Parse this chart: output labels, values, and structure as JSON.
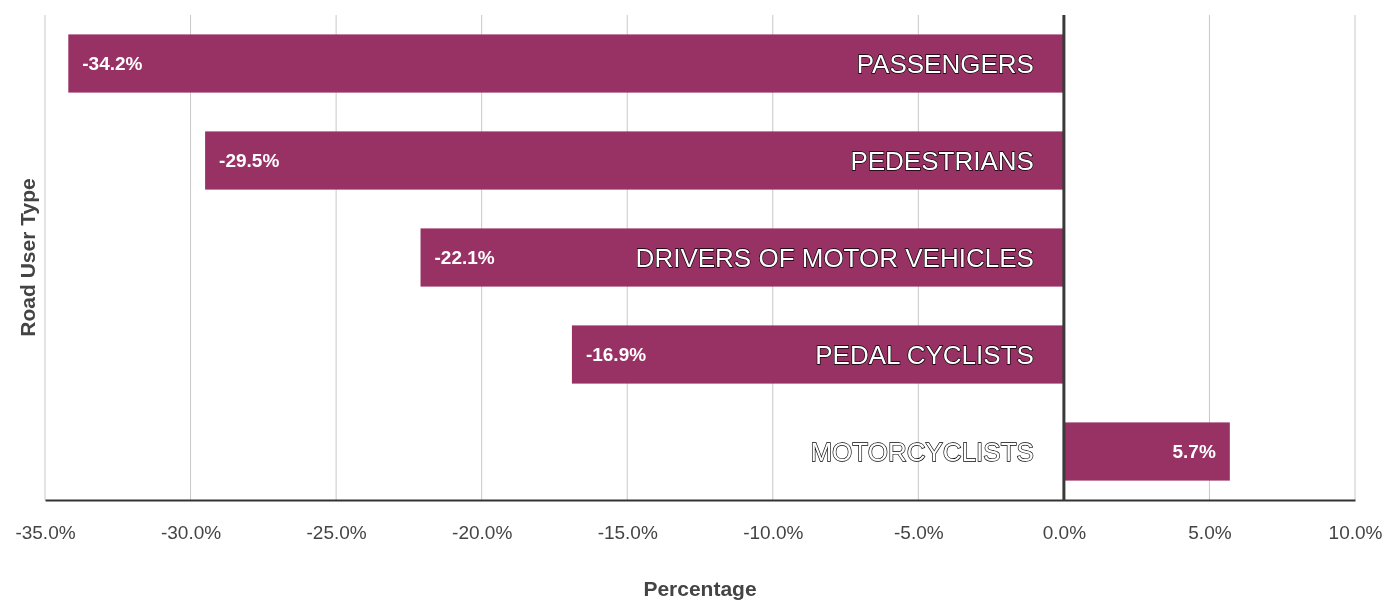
{
  "chart_data": {
    "type": "bar",
    "orientation": "horizontal",
    "xlabel": "Percentage",
    "ylabel": "Road User Type",
    "categories": [
      "PASSENGERS",
      "PEDESTRIANS",
      "DRIVERS OF MOTOR VEHICLES",
      "PEDAL CYCLISTS",
      "MOTORCYCLISTS"
    ],
    "values": [
      -34.2,
      -29.5,
      -22.1,
      -16.9,
      5.7
    ],
    "value_labels": [
      "-34.2%",
      "-29.5%",
      "-22.1%",
      "-16.9%",
      "5.7%"
    ],
    "color": "#983264",
    "xlim": [
      -35,
      10
    ],
    "xticks": [
      {
        "value": -35,
        "label": "-35.0%"
      },
      {
        "value": -30,
        "label": "-30.0%"
      },
      {
        "value": -25,
        "label": "-25.0%"
      },
      {
        "value": -20,
        "label": "-20.0%"
      },
      {
        "value": -15,
        "label": "-15.0%"
      },
      {
        "value": -10,
        "label": "-10.0%"
      },
      {
        "value": -5,
        "label": "-5.0%"
      },
      {
        "value": 0,
        "label": "0.0%"
      },
      {
        "value": 5,
        "label": "5.0%"
      },
      {
        "value": 10,
        "label": "10.0%"
      }
    ],
    "grid": "x"
  }
}
